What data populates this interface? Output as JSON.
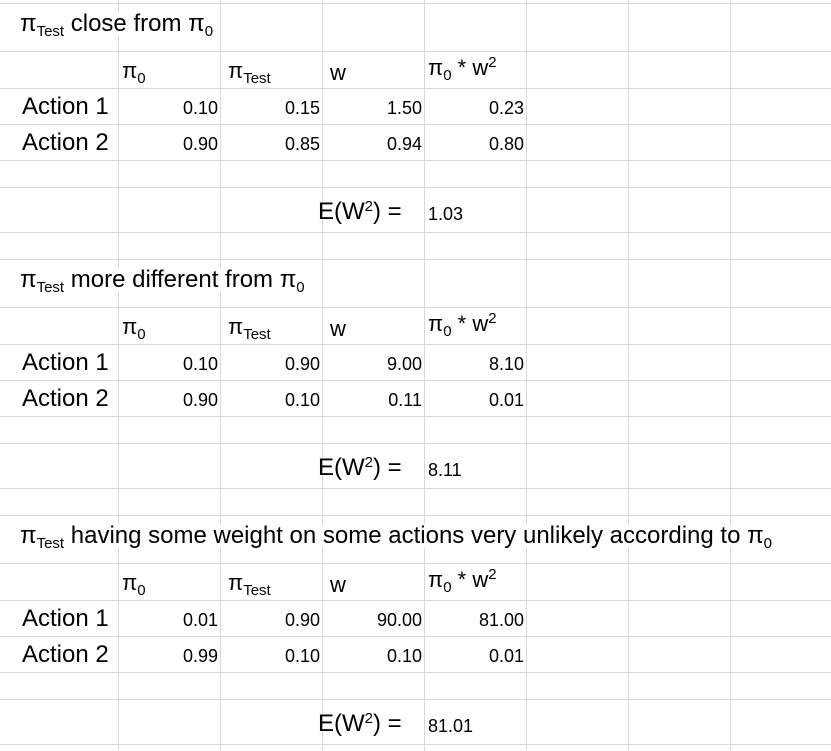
{
  "sheet": {
    "pi": "π",
    "sub_test": "Test",
    "sub_zero": "0",
    "sections": [
      {
        "title_text": "close from",
        "headers": {
          "w": "w",
          "star": "*",
          "sq": "2"
        },
        "rows": [
          {
            "label": "Action 1",
            "pi0": "0.10",
            "pitest": "0.15",
            "w": "1.50",
            "pi0w2": "0.23"
          },
          {
            "label": "Action 2",
            "pi0": "0.90",
            "pitest": "0.85",
            "w": "0.94",
            "pi0w2": "0.80"
          }
        ],
        "ew_label": "E(W",
        "ew_sq": "2",
        "ew_close": ") =",
        "ew_value": "1.03"
      },
      {
        "title_text": "more different from",
        "headers": {
          "w": "w",
          "star": "*",
          "sq": "2"
        },
        "rows": [
          {
            "label": "Action 1",
            "pi0": "0.10",
            "pitest": "0.90",
            "w": "9.00",
            "pi0w2": "8.10"
          },
          {
            "label": "Action 2",
            "pi0": "0.90",
            "pitest": "0.10",
            "w": "0.11",
            "pi0w2": "0.01"
          }
        ],
        "ew_label": "E(W",
        "ew_sq": "2",
        "ew_close": ") =",
        "ew_value": "8.11"
      },
      {
        "title_text": "having some weight on some actions very unlikely according to",
        "headers": {
          "w": "w",
          "star": "*",
          "sq": "2"
        },
        "rows": [
          {
            "label": "Action 1",
            "pi0": "0.01",
            "pitest": "0.90",
            "w": "90.00",
            "pi0w2": "81.00"
          },
          {
            "label": "Action 2",
            "pi0": "0.99",
            "pitest": "0.10",
            "w": "0.10",
            "pi0w2": "0.01"
          }
        ],
        "ew_label": "E(W",
        "ew_sq": "2",
        "ew_close": ") =",
        "ew_value": "81.01"
      }
    ]
  }
}
